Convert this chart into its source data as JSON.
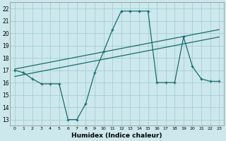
{
  "xlabel": "Humidex (Indice chaleur)",
  "bg_color": "#cce8ec",
  "grid_color": "#9dc8d0",
  "line_color": "#1a6b6b",
  "xlim": [
    -0.5,
    23.5
  ],
  "ylim": [
    12.5,
    22.5
  ],
  "xticks": [
    0,
    1,
    2,
    3,
    4,
    5,
    6,
    7,
    8,
    9,
    10,
    11,
    12,
    13,
    14,
    15,
    16,
    17,
    18,
    19,
    20,
    21,
    22,
    23
  ],
  "yticks": [
    13,
    14,
    15,
    16,
    17,
    18,
    19,
    20,
    21,
    22
  ],
  "curve1_x": [
    0,
    1,
    2,
    3,
    4,
    5,
    6,
    7,
    8,
    9,
    10,
    11,
    12,
    13,
    14,
    15,
    16,
    17,
    18,
    19,
    20,
    21,
    22,
    23
  ],
  "curve1_y": [
    17.0,
    16.8,
    16.3,
    15.9,
    15.9,
    15.9,
    13.0,
    13.0,
    14.3,
    16.8,
    18.5,
    20.3,
    21.8,
    21.8,
    21.8,
    21.8,
    16.0,
    16.0,
    16.0,
    19.7,
    17.3,
    16.3,
    16.1,
    16.1
  ],
  "curve2_x": [
    0,
    23
  ],
  "curve2_y": [
    17.1,
    20.3
  ],
  "curve3_x": [
    0,
    23
  ],
  "curve3_y": [
    16.5,
    19.7
  ],
  "xtick_fontsize": 4.5,
  "ytick_fontsize": 5.5,
  "xlabel_fontsize": 6.5
}
